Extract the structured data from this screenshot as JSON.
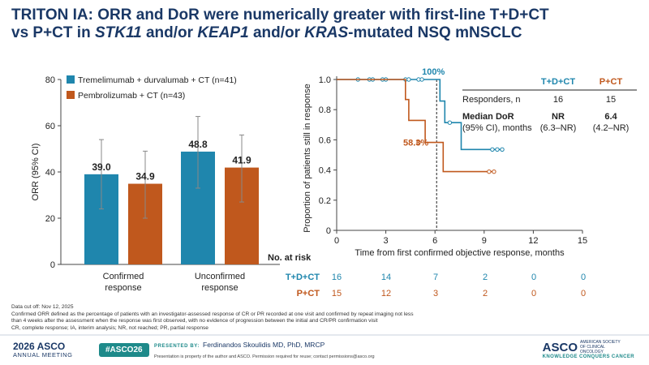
{
  "title_line1": "TRITON IA: ORR and DoR were numerically greater with first-line T+D+CT",
  "title_line2_a": "vs P+CT in ",
  "title_line2_b": "STK11",
  "title_line2_c": " and/or ",
  "title_line2_d": "KEAP1",
  "title_line2_e": " and/or ",
  "title_line2_f": "KRAS",
  "title_line2_g": "-mutated NSQ mNSCLC",
  "colors": {
    "teal": "#1f86ad",
    "orange": "#c0581d",
    "title": "#1a3866",
    "asco_teal": "#1e8a8a"
  },
  "chart_data": [
    {
      "type": "bar",
      "ylabel": "ORR (95% CI)",
      "ylim": [
        0,
        80
      ],
      "yticks": [
        0,
        20,
        40,
        60,
        80
      ],
      "categories": [
        {
          "line1": "Confirmed",
          "line2": "response"
        },
        {
          "line1": "Unconfirmed",
          "line2": "response"
        }
      ],
      "series": [
        {
          "name": "Tremelimumab + durvalumab + CT (n=41)",
          "color": "#1f86ad",
          "values": [
            39.0,
            48.8
          ],
          "labels": [
            "39.0",
            "48.8"
          ],
          "ci_low": [
            24,
            33
          ],
          "ci_high": [
            54,
            64
          ]
        },
        {
          "name": "Pembrolizumab + CT (n=43)",
          "color": "#c0581d",
          "values": [
            34.9,
            41.9
          ],
          "labels": [
            "34.9",
            "41.9"
          ],
          "ci_low": [
            20,
            27
          ],
          "ci_high": [
            49,
            56
          ]
        }
      ],
      "legend_position": "top-left"
    },
    {
      "type": "line",
      "subtype": "kaplan-meier",
      "xlabel": "Time from first confirmed objective response, months",
      "ylabel": "Proportion of patients still in response",
      "xlim": [
        0,
        15
      ],
      "ylim": [
        0,
        1.0
      ],
      "xticks": [
        0,
        3,
        6,
        9,
        12,
        15
      ],
      "yticks": [
        "0",
        "0.2",
        "0.4",
        "0.6",
        "0.8",
        "1.0"
      ],
      "median_line_x": 6.1,
      "series": [
        {
          "name": "T+D+CT",
          "color": "#1f86ad",
          "steps": [
            [
              0,
              1.0
            ],
            [
              6.3,
              1.0
            ],
            [
              6.3,
              0.857
            ],
            [
              6.6,
              0.857
            ],
            [
              6.6,
              0.714
            ],
            [
              7.6,
              0.714
            ],
            [
              7.6,
              0.536
            ],
            [
              10.1,
              0.536
            ]
          ],
          "censors": [
            [
              1.3,
              1.0
            ],
            [
              2.0,
              1.0
            ],
            [
              2.2,
              1.0
            ],
            [
              2.8,
              1.0
            ],
            [
              3.0,
              1.0
            ],
            [
              4.2,
              1.0
            ],
            [
              4.4,
              1.0
            ],
            [
              5.0,
              1.0
            ],
            [
              5.2,
              1.0
            ],
            [
              6.9,
              0.714
            ],
            [
              9.5,
              0.536
            ],
            [
              9.8,
              0.536
            ],
            [
              10.1,
              0.536
            ]
          ],
          "annotation": "100%",
          "annotation_x": 6.0,
          "annotation_y": 1.0
        },
        {
          "name": "P+CT",
          "color": "#c0581d",
          "steps": [
            [
              0,
              1.0
            ],
            [
              4.2,
              1.0
            ],
            [
              4.2,
              0.867
            ],
            [
              4.4,
              0.867
            ],
            [
              4.4,
              0.729
            ],
            [
              5.4,
              0.729
            ],
            [
              5.4,
              0.583
            ],
            [
              6.5,
              0.583
            ],
            [
              6.5,
              0.389
            ],
            [
              9.6,
              0.389
            ]
          ],
          "censors": [
            [
              5.0,
              0.583
            ],
            [
              9.3,
              0.389
            ],
            [
              9.6,
              0.389
            ]
          ],
          "annotation": "58.3%",
          "annotation_x": 6.0,
          "annotation_y": 0.583
        }
      ],
      "summary_table": {
        "headers": [
          "T+D+CT",
          "P+CT"
        ],
        "rows": [
          {
            "label": "Responders, n",
            "values": [
              "16",
              "15"
            ]
          },
          {
            "label": "Median DoR",
            "sub_label": "(95% CI), months",
            "values": [
              "NR",
              "6.4"
            ],
            "ci": [
              "(6.3–NR)",
              "(4.2–NR)"
            ]
          }
        ]
      }
    }
  ],
  "risk_table": {
    "title": "No. at risk",
    "rows": [
      {
        "label": "T+D+CT",
        "color": "#1f86ad",
        "values": [
          "16",
          "14",
          "7",
          "2",
          "0",
          "0"
        ]
      },
      {
        "label": "P+CT",
        "color": "#c0581d",
        "values": [
          "15",
          "12",
          "3",
          "2",
          "0",
          "0"
        ]
      }
    ]
  },
  "footnotes": [
    "Data cut off: Nov 12, 2025",
    "Confirmed ORR defined as the percentage of patients with an investigator-assessed response of CR or PR recorded at one visit and confirmed by repeat imaging not less",
    "than 4 weeks after the assessment when the response was first observed, with no evidence of progression between the initial and CR/PR confirmation visit",
    "CR, complete response; IA, interim analysis; NR, not reached; PR, partial response"
  ],
  "footer": {
    "year": "2026",
    "asco_short": "ASCO",
    "meeting": "ANNUAL MEETING",
    "hashtag": "#ASCO26",
    "presented_by": "PRESENTED BY:",
    "presenter": "Ferdinandos Skoulidis MD, PhD, MRCP",
    "permission": "Presentation is property of the author and ASCO. Permission required for reuse; contact permissions@asco.org",
    "org_name": "ASCO",
    "org_sub": "AMERICAN SOCIETY OF CLINICAL ONCOLOGY",
    "tagline": "KNOWLEDGE CONQUERS CANCER"
  }
}
